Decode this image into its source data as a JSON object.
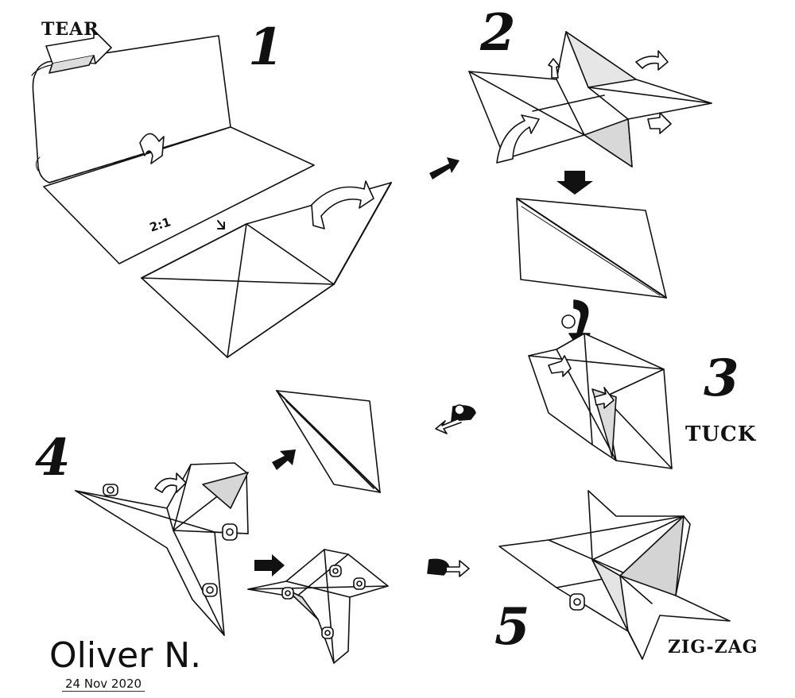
{
  "steps": [
    {
      "number": "1"
    },
    {
      "number": "2"
    },
    {
      "number": "3",
      "caption": "TUCK"
    },
    {
      "number": "4"
    },
    {
      "number": "5",
      "caption": "ZIG-ZAG"
    }
  ],
  "labels": {
    "tear": "TEAR",
    "ratio": "2:1"
  },
  "signature": {
    "author": "Oliver N.",
    "date": "24 Nov 2020"
  },
  "colors": {
    "ink": "#111111",
    "paper": "#ffffff",
    "shade": "#cfcfcf"
  }
}
